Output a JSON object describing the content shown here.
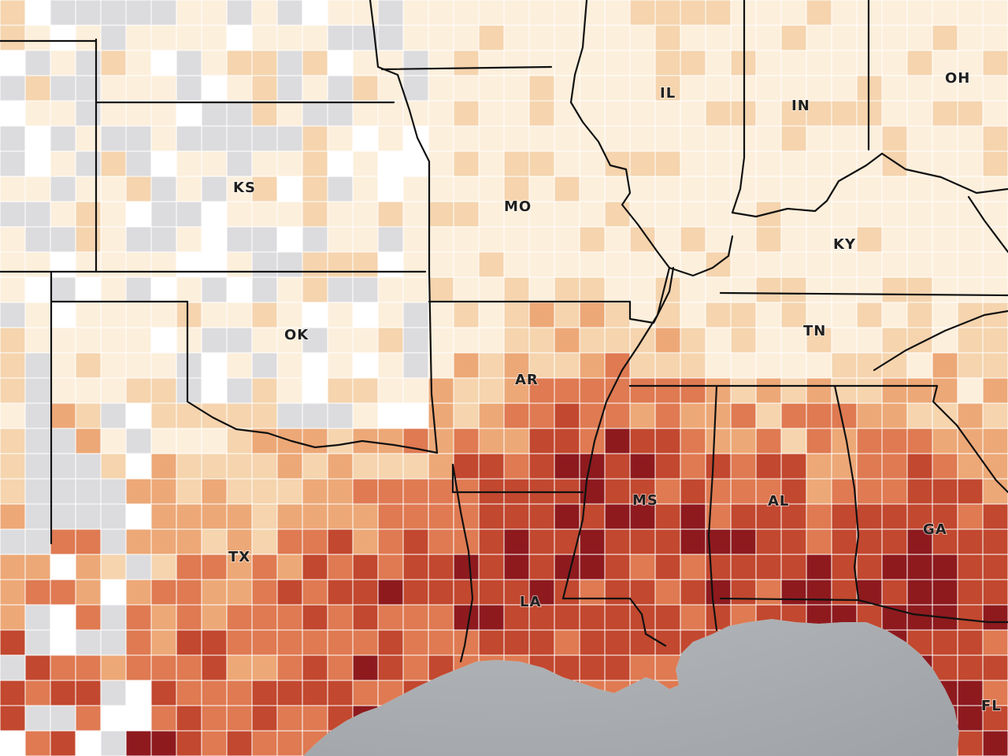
{
  "map": {
    "type": "choropleth",
    "region": "South-central and southeastern United States, county level",
    "colors": {
      "no_data": "#dcdcdf",
      "none": "#ffffff",
      "scale": [
        "#fcefdc",
        "#f5d4ae",
        "#eda877",
        "#df7a52",
        "#c2482f",
        "#8e1a1e"
      ],
      "water": "#aeb1b5",
      "border": "#111111",
      "county_line": "#ffffff"
    },
    "state_labels": [
      {
        "code": "KS"
      },
      {
        "code": "MO"
      },
      {
        "code": "IL"
      },
      {
        "code": "IN"
      },
      {
        "code": "OH"
      },
      {
        "code": "KY"
      },
      {
        "code": "OK"
      },
      {
        "code": "TN"
      },
      {
        "code": "AR"
      },
      {
        "code": "MS"
      },
      {
        "code": "AL"
      },
      {
        "code": "GA"
      },
      {
        "code": "TX"
      },
      {
        "code": "LA"
      },
      {
        "code": "FL"
      }
    ]
  }
}
